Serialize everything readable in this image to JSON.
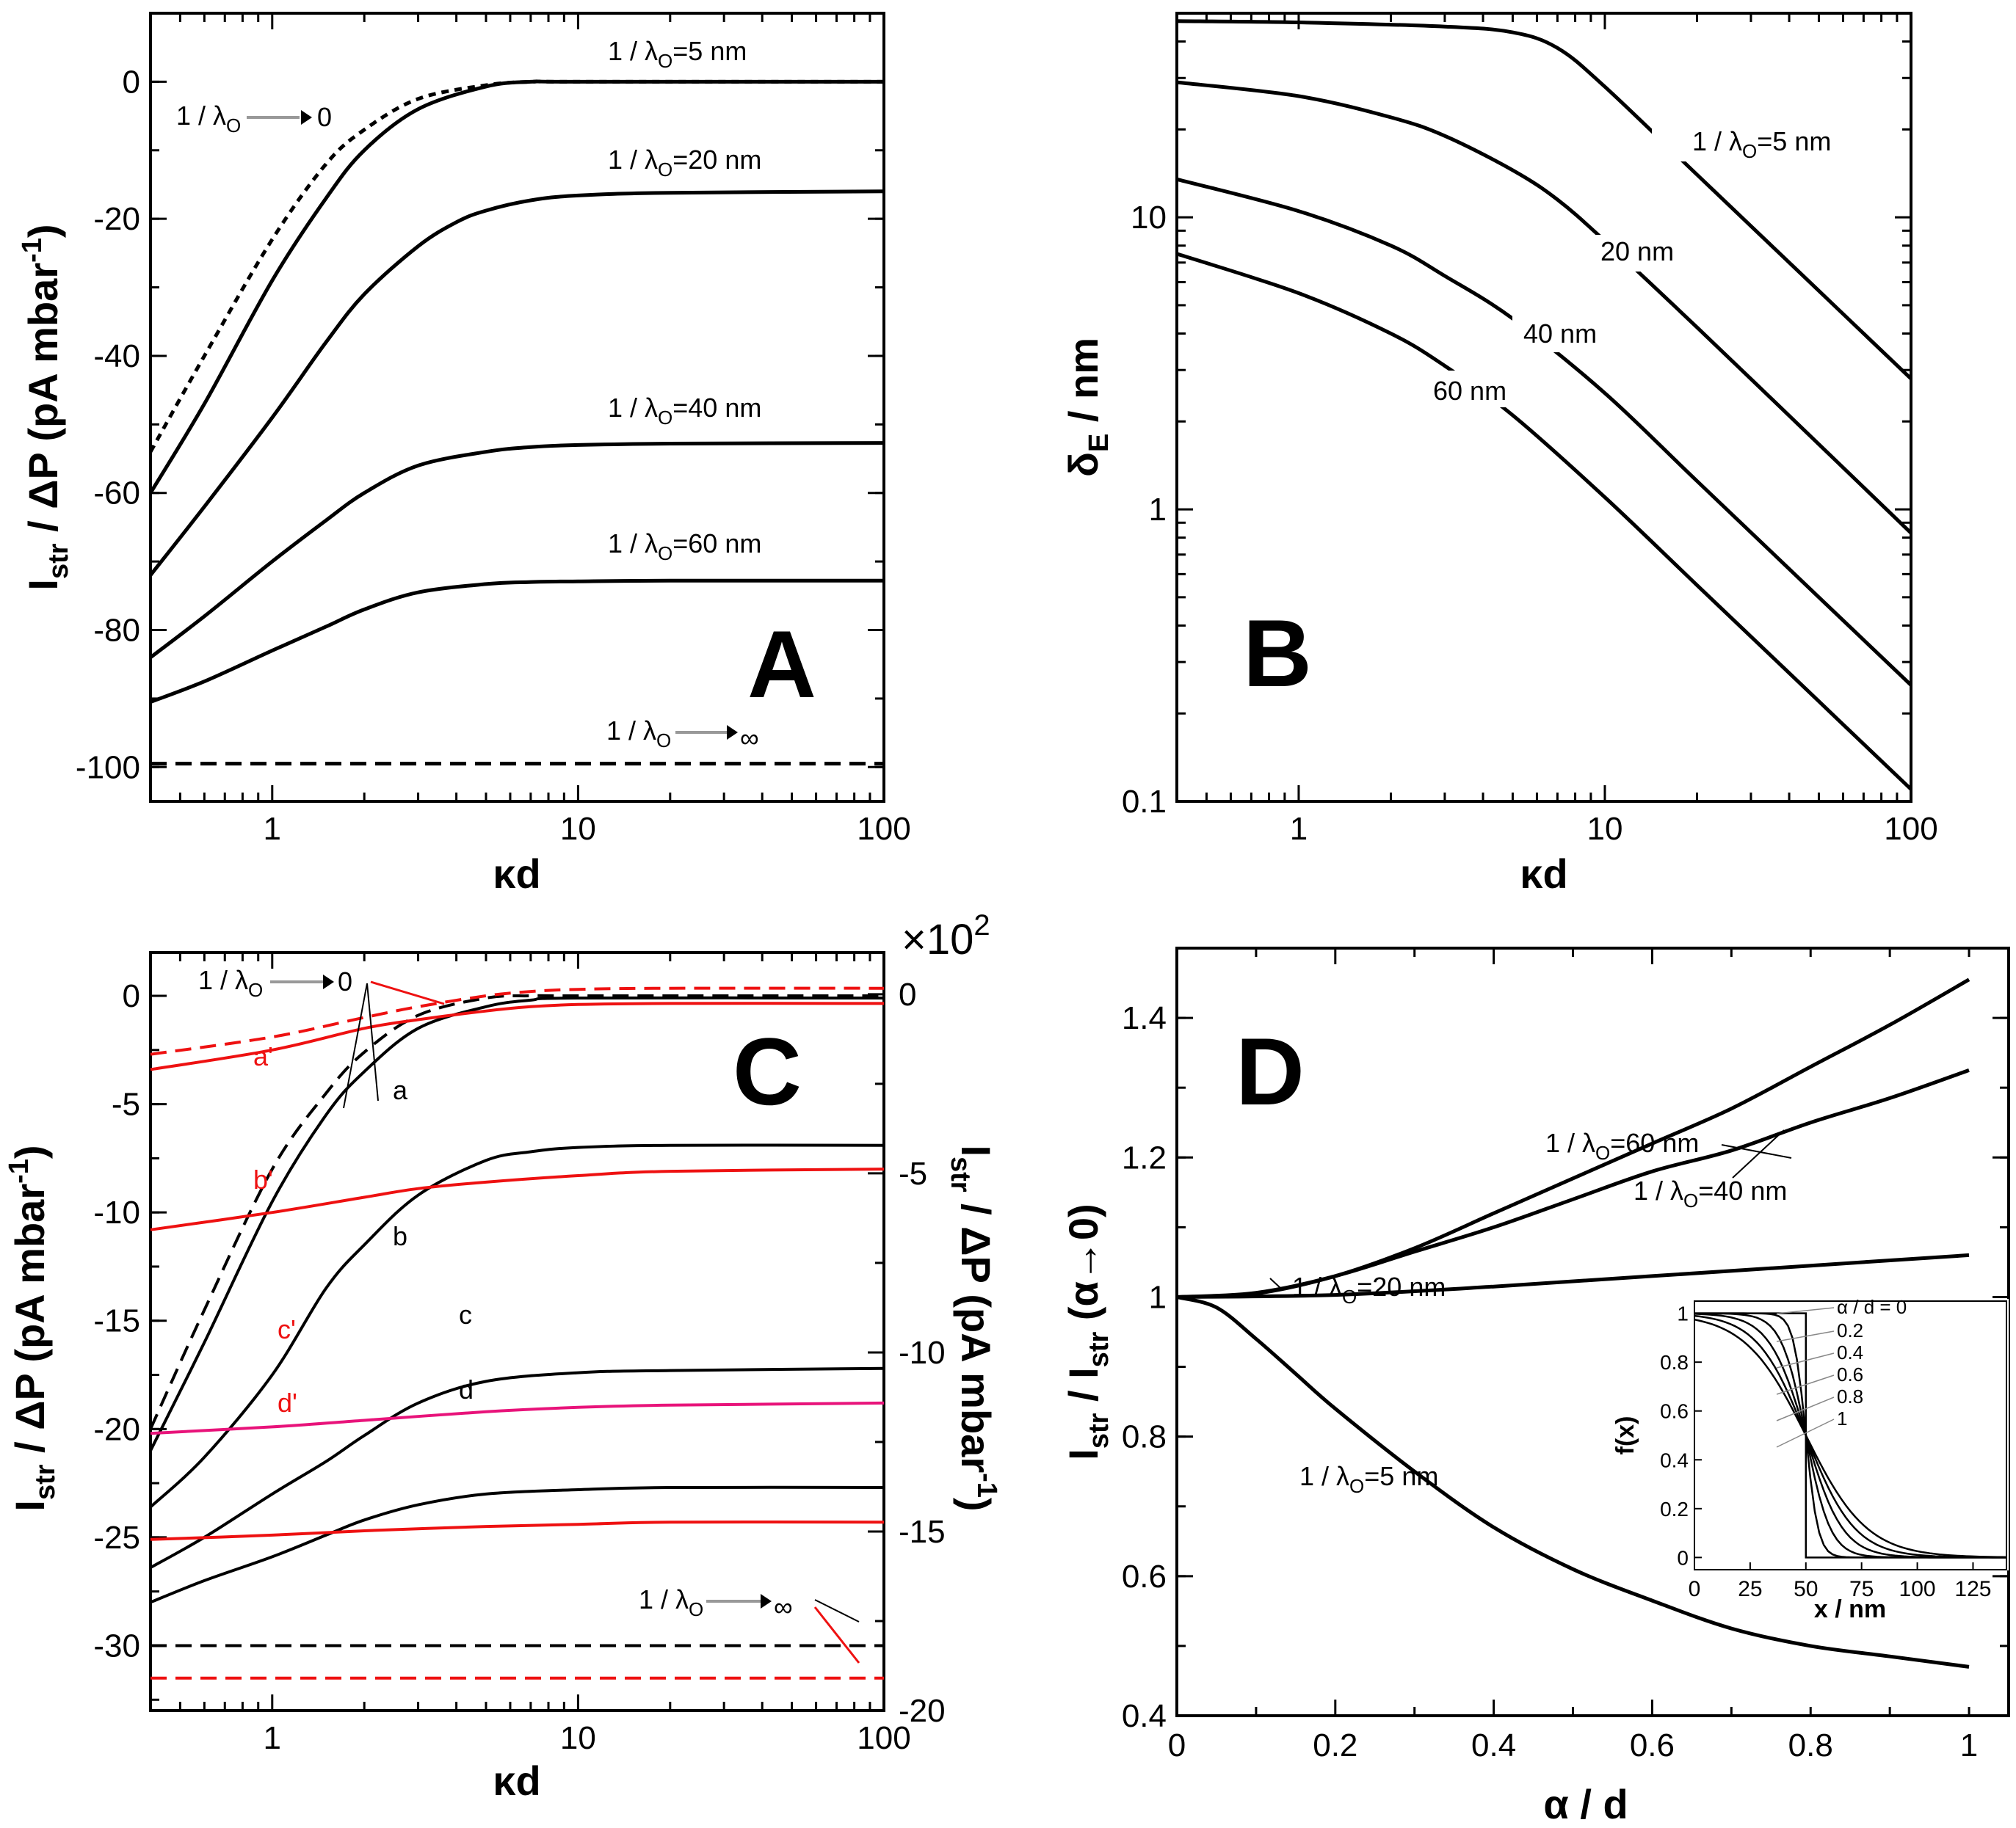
{
  "colors": {
    "black": "#000000",
    "red": "#ee1111",
    "magenta": "#e8137a",
    "gray": "#999999"
  },
  "chart_data": [
    {
      "panel": "A",
      "type": "line",
      "x_scale": "log",
      "xlim": [
        0.4,
        100
      ],
      "ylim": [
        -105,
        10
      ],
      "xlabel": "κd",
      "ylabel_main": "I",
      "ylabel_sub": "str",
      "ylabel_rest": " / ΔP (pA mbar",
      "ylabel_sup": "-1",
      "ylabel_close": ")",
      "x_ticks": [
        1,
        10,
        100
      ],
      "x_tick_labels": [
        "1",
        "10",
        "100"
      ],
      "y_ticks": [
        0,
        -20,
        -40,
        -60,
        -80,
        -100
      ],
      "y_tick_labels": [
        "0",
        "-20",
        "-40",
        "-60",
        "-80",
        "-100"
      ],
      "letter": "A",
      "series": [
        {
          "name": "1/λo→0",
          "style": "dotted",
          "color": "black",
          "x": [
            0.4,
            0.6,
            1,
            1.5,
            2,
            3,
            5,
            7,
            10,
            100
          ],
          "y": [
            -54,
            -40,
            -23,
            -12,
            -7,
            -2.5,
            -0.5,
            0,
            0,
            0
          ]
        },
        {
          "name": "1/λo=5 nm",
          "style": "solid",
          "color": "black",
          "x": [
            0.4,
            0.6,
            1,
            1.5,
            2,
            3,
            5,
            7,
            10,
            100
          ],
          "y": [
            -60,
            -47,
            -29,
            -17,
            -10,
            -4,
            -0.7,
            0,
            0,
            0
          ]
        },
        {
          "name": "1/λo=20 nm",
          "style": "solid",
          "color": "black",
          "x": [
            0.4,
            0.6,
            1,
            1.5,
            2,
            3,
            4,
            5,
            7,
            10,
            20,
            100
          ],
          "y": [
            -72,
            -62,
            -49,
            -38,
            -31,
            -24,
            -20.5,
            -18.8,
            -17.3,
            -16.6,
            -16.2,
            -16
          ]
        },
        {
          "name": "1/λo=40 nm",
          "style": "solid",
          "color": "black",
          "x": [
            0.4,
            0.6,
            1,
            1.5,
            2,
            3,
            5,
            7,
            10,
            20,
            100
          ],
          "y": [
            -84,
            -78,
            -70,
            -64,
            -60,
            -56,
            -54,
            -53.3,
            -53,
            -52.8,
            -52.7
          ]
        },
        {
          "name": "1/λo=60 nm",
          "style": "solid",
          "color": "black",
          "x": [
            0.4,
            0.6,
            1,
            1.5,
            2,
            3,
            5,
            7,
            10,
            20,
            100
          ],
          "y": [
            -90.5,
            -87.5,
            -83,
            -79.5,
            -77,
            -74.5,
            -73.3,
            -73,
            -72.9,
            -72.8,
            -72.8
          ]
        },
        {
          "name": "1/λo→∞",
          "style": "dashed",
          "color": "black",
          "x": [
            0.4,
            100
          ],
          "y": [
            -99.5,
            -99.5
          ]
        }
      ],
      "annotations": {
        "l5": "1 / λ",
        "s5": "O",
        "r5": "=5 nm",
        "l20": "1 / λ",
        "s20": "O",
        "r20": "=20 nm",
        "l40": "1 / λ",
        "s40": "O",
        "r40": "=40 nm",
        "l60": "1 / λ",
        "s60": "O",
        "r60": "=60 nm",
        "l0": "1 / λ",
        "s0": "O",
        "r0": "0",
        "linf": "1 / λ",
        "sinf": "O",
        "rinf": "∞"
      }
    },
    {
      "panel": "B",
      "type": "line",
      "x_scale": "log",
      "y_scale": "log",
      "xlim": [
        0.4,
        100
      ],
      "ylim": [
        0.1,
        50
      ],
      "xlabel": "κd",
      "ylabel_main": "δ",
      "ylabel_sub": "E",
      "ylabel_rest": " / nm",
      "x_ticks": [
        1,
        10,
        100
      ],
      "x_tick_labels": [
        "1",
        "10",
        "100"
      ],
      "y_ticks": [
        0.1,
        1,
        10
      ],
      "y_tick_labels": [
        "0.1",
        "1",
        "10"
      ],
      "letter": "B",
      "series": [
        {
          "name": "1/λo=5 nm",
          "x": [
            0.4,
            1,
            3,
            5,
            7,
            10,
            20,
            50,
            100
          ],
          "y": [
            47,
            46.5,
            45,
            43,
            38,
            28,
            14,
            5.6,
            2.8
          ]
        },
        {
          "name": "20 nm",
          "x": [
            0.4,
            1,
            2,
            3,
            5,
            7,
            10,
            20,
            50,
            100
          ],
          "y": [
            29,
            26,
            22,
            19,
            14.5,
            11.5,
            8.3,
            4.2,
            1.67,
            0.83
          ]
        },
        {
          "name": "40 nm",
          "x": [
            0.4,
            1,
            2,
            3,
            5,
            10,
            20,
            50,
            100
          ],
          "y": [
            13.5,
            10.5,
            8,
            6.3,
            4.5,
            2.5,
            1.25,
            0.5,
            0.25
          ]
        },
        {
          "name": "60 nm",
          "x": [
            0.4,
            1,
            2,
            3,
            5,
            10,
            20,
            50,
            100
          ],
          "y": [
            7.5,
            5.5,
            4,
            3.1,
            2.1,
            1.1,
            0.55,
            0.22,
            0.11
          ]
        }
      ],
      "annotations": {
        "l5": "1 / λ",
        "s5": "O",
        "r5": "=5 nm",
        "t20": "20 nm",
        "t40": "40 nm",
        "t60": "60 nm"
      }
    },
    {
      "panel": "C",
      "type": "line",
      "x_scale": "log",
      "xlim": [
        0.4,
        100
      ],
      "ylim": [
        -33,
        2
      ],
      "right_axis": {
        "ylim": [
          -20,
          1.166
        ],
        "ticks": [
          0,
          -5,
          -10,
          -15,
          -20
        ],
        "tick_labels": [
          "0",
          "-5",
          "-10",
          "-15",
          "-20"
        ],
        "multiplier": "×10",
        "multiplier_exp": "2",
        "label_main": "I",
        "label_sub": "str",
        "label_rest": " / ΔP (pA mbar",
        "label_sup": "-1",
        "label_close": ")"
      },
      "xlabel": "κd",
      "ylabel_main": "I",
      "ylabel_sub": "str",
      "ylabel_rest": " / ΔP (pA mbar",
      "ylabel_sup": "-1",
      "ylabel_close": ")",
      "x_ticks": [
        1,
        10,
        100
      ],
      "x_tick_labels": [
        "1",
        "10",
        "100"
      ],
      "y_ticks": [
        0,
        -5,
        -10,
        -15,
        -20,
        -25,
        -30
      ],
      "y_tick_labels": [
        "0",
        "-5",
        "-10",
        "-15",
        "-20",
        "-25",
        "-30"
      ],
      "letter": "C",
      "series": [
        {
          "name": "black 1/λo→0",
          "style": "dashed",
          "color": "black",
          "x": [
            0.4,
            0.6,
            1,
            1.5,
            2,
            3,
            5,
            7,
            10,
            100
          ],
          "y": [
            -20,
            -14.5,
            -8,
            -4.5,
            -2.6,
            -0.9,
            -0.1,
            0,
            0,
            0
          ]
        },
        {
          "name": "a",
          "style": "solid",
          "color": "black",
          "x": [
            0.4,
            0.6,
            1,
            1.5,
            2,
            3,
            5,
            7,
            10,
            100
          ],
          "y": [
            -21,
            -16,
            -9.5,
            -5.5,
            -3.5,
            -1.5,
            -0.5,
            -0.2,
            -0.1,
            -0.1
          ]
        },
        {
          "name": "b",
          "style": "solid",
          "color": "black",
          "x": [
            0.4,
            0.6,
            1,
            1.5,
            2,
            3,
            5,
            7,
            10,
            20,
            100
          ],
          "y": [
            -23.6,
            -21.3,
            -17.5,
            -13.5,
            -11.5,
            -9.2,
            -7.6,
            -7.2,
            -7,
            -6.9,
            -6.9
          ]
        },
        {
          "name": "c",
          "style": "solid",
          "color": "black",
          "x": [
            0.4,
            0.6,
            1,
            1.5,
            2,
            3,
            5,
            10,
            20,
            100
          ],
          "y": [
            -26.4,
            -25,
            -23,
            -21.5,
            -20.3,
            -18.8,
            -17.8,
            -17.4,
            -17.3,
            -17.2
          ]
        },
        {
          "name": "d",
          "style": "solid",
          "color": "black",
          "x": [
            0.4,
            0.6,
            1,
            1.5,
            2,
            3,
            5,
            10,
            20,
            100
          ],
          "y": [
            -28,
            -27,
            -25.9,
            -24.9,
            -24.2,
            -23.5,
            -23,
            -22.8,
            -22.7,
            -22.7
          ]
        },
        {
          "name": "black 1/λo→∞",
          "style": "dashed",
          "color": "black",
          "x": [
            0.4,
            100
          ],
          "y": [
            -30,
            -30
          ]
        },
        {
          "name": "red 1/λo→0",
          "style": "dashed",
          "color": "red",
          "x": [
            0.4,
            1,
            2,
            3,
            5,
            7,
            10,
            20,
            100
          ],
          "y": [
            -2.7,
            -1.9,
            -1,
            -0.5,
            0,
            0.2,
            0.3,
            0.35,
            0.35
          ]
        },
        {
          "name": "a'",
          "style": "solid",
          "color": "red",
          "x": [
            0.4,
            1,
            2,
            3,
            5,
            7,
            10,
            20,
            100
          ],
          "y": [
            -3.4,
            -2.5,
            -1.5,
            -1.1,
            -0.7,
            -0.5,
            -0.4,
            -0.35,
            -0.35
          ]
        },
        {
          "name": "b'",
          "style": "solid",
          "color": "red",
          "x": [
            0.4,
            1,
            2,
            3,
            5,
            10,
            20,
            100
          ],
          "y": [
            -10.8,
            -10,
            -9.3,
            -8.9,
            -8.6,
            -8.3,
            -8.1,
            -8
          ]
        },
        {
          "name": "c'",
          "style": "solid",
          "color": "magenta",
          "x": [
            0.4,
            1,
            2,
            5,
            10,
            20,
            100
          ],
          "y": [
            -20.2,
            -19.9,
            -19.6,
            -19.2,
            -19,
            -18.9,
            -18.8
          ]
        },
        {
          "name": "d'",
          "style": "solid",
          "color": "red",
          "x": [
            0.4,
            1,
            2,
            5,
            10,
            20,
            100
          ],
          "y": [
            -25.1,
            -24.9,
            -24.7,
            -24.5,
            -24.4,
            -24.3,
            -24.3
          ]
        },
        {
          "name": "red 1/λo→∞",
          "style": "dashed",
          "color": "red",
          "x": [
            0.4,
            100
          ],
          "y": [
            -31.5,
            -31.5
          ]
        }
      ],
      "annotations": {
        "l0": "1 / λ",
        "s0": "O",
        "r0": "0",
        "linf": "1 / λ",
        "sinf": "O",
        "rinf": "∞",
        "a": "a",
        "b": "b",
        "c": "c",
        "d": "d",
        "ap": "a'",
        "bp": "b'",
        "cp": "c'",
        "dp": "d'"
      }
    },
    {
      "panel": "D",
      "type": "line",
      "xlim": [
        0,
        1.05
      ],
      "ylim": [
        0.4,
        1.5
      ],
      "xlabel": "α / d",
      "ylabel_main": "I",
      "ylabel_sub1": "str",
      "ylabel_mid": " / I",
      "ylabel_sub2": "str",
      "ylabel_rest": " (α→0)",
      "x_ticks": [
        0,
        0.2,
        0.4,
        0.6,
        0.8,
        1
      ],
      "x_tick_labels": [
        "0",
        "0.2",
        "0.4",
        "0.6",
        "0.8",
        "1"
      ],
      "y_ticks": [
        0.4,
        0.6,
        0.8,
        1,
        1.2,
        1.4
      ],
      "y_tick_labels": [
        "0.4",
        "0.6",
        "0.8",
        "1",
        "1.2",
        "1.4"
      ],
      "letter": "D",
      "series": [
        {
          "name": "1/λo=60 nm",
          "x": [
            0,
            0.1,
            0.2,
            0.3,
            0.4,
            0.5,
            0.6,
            0.7,
            0.8,
            0.9,
            1
          ],
          "y": [
            1,
            1.005,
            1.03,
            1.07,
            1.12,
            1.17,
            1.22,
            1.27,
            1.33,
            1.39,
            1.455
          ]
        },
        {
          "name": "1/λo=40 nm",
          "x": [
            0,
            0.1,
            0.2,
            0.3,
            0.4,
            0.5,
            0.6,
            0.7,
            0.8,
            0.9,
            1
          ],
          "y": [
            1,
            1.006,
            1.03,
            1.065,
            1.1,
            1.14,
            1.18,
            1.21,
            1.25,
            1.285,
            1.325
          ]
        },
        {
          "name": "1/λo=20 nm",
          "x": [
            0,
            0.2,
            0.4,
            0.6,
            0.8,
            1
          ],
          "y": [
            1,
            1.003,
            1.015,
            1.03,
            1.045,
            1.06
          ]
        },
        {
          "name": "1/λo=5 nm",
          "x": [
            0,
            0.05,
            0.1,
            0.15,
            0.2,
            0.3,
            0.4,
            0.5,
            0.6,
            0.7,
            0.8,
            0.9,
            1
          ],
          "y": [
            1,
            0.985,
            0.94,
            0.89,
            0.84,
            0.75,
            0.67,
            0.61,
            0.565,
            0.525,
            0.5,
            0.485,
            0.47
          ]
        }
      ],
      "annotations": {
        "l60": "1 / λ",
        "s60": "O",
        "r60": "=60 nm",
        "l40": "1 / λ",
        "s40": "O",
        "r40": "=40 nm",
        "l20": "1 / λ",
        "s20": "O",
        "r20": "=20 nm",
        "l5": "1 / λ",
        "s5": "O",
        "r5": "=5 nm"
      },
      "inset": {
        "type": "line",
        "xlim": [
          0,
          140
        ],
        "ylim": [
          -0.05,
          1.05
        ],
        "xlabel": "x / nm",
        "ylabel": "f(x)",
        "x_ticks": [
          0,
          25,
          50,
          75,
          100,
          125
        ],
        "x_tick_labels": [
          "0",
          "25",
          "50",
          "75",
          "100",
          "125"
        ],
        "y_ticks": [
          0,
          0.2,
          0.4,
          0.6,
          0.8,
          1
        ],
        "y_tick_labels": [
          "0",
          "0.2",
          "0.4",
          "0.6",
          "0.8",
          "1"
        ],
        "alpha_values": [
          0,
          0.2,
          0.4,
          0.6,
          0.8,
          1
        ],
        "legend_labels": [
          "α / d = 0",
          "0.2",
          "0.4",
          "0.6",
          "0.8",
          "1"
        ],
        "step_x": 50
      }
    }
  ]
}
